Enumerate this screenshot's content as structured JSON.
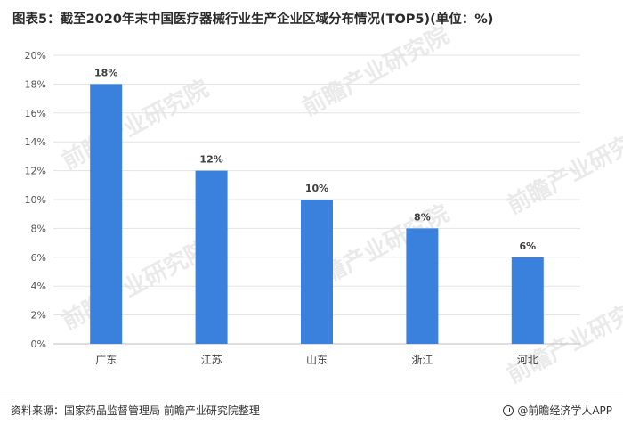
{
  "title": "图表5：截至2020年末中国医疗器械行业生产企业区域分布情况(TOP5)(单位：%)",
  "footer": {
    "source": "资料来源：国家药品监督管理局 前瞻产业研究院整理",
    "brand": "@前瞻经济学人APP"
  },
  "watermark": "前瞻产业研究院",
  "chart_data": {
    "type": "bar",
    "categories": [
      "广东",
      "江苏",
      "山东",
      "浙江",
      "河北"
    ],
    "values": [
      18,
      12,
      10,
      8,
      6
    ],
    "data_labels": [
      "18%",
      "12%",
      "10%",
      "8%",
      "6%"
    ],
    "y_ticks": [
      "0%",
      "2%",
      "4%",
      "6%",
      "8%",
      "10%",
      "12%",
      "14%",
      "16%",
      "18%",
      "20%"
    ],
    "ylim": [
      0,
      20
    ],
    "bar_color": "#3a80dd",
    "grid": true,
    "legend": "none"
  }
}
